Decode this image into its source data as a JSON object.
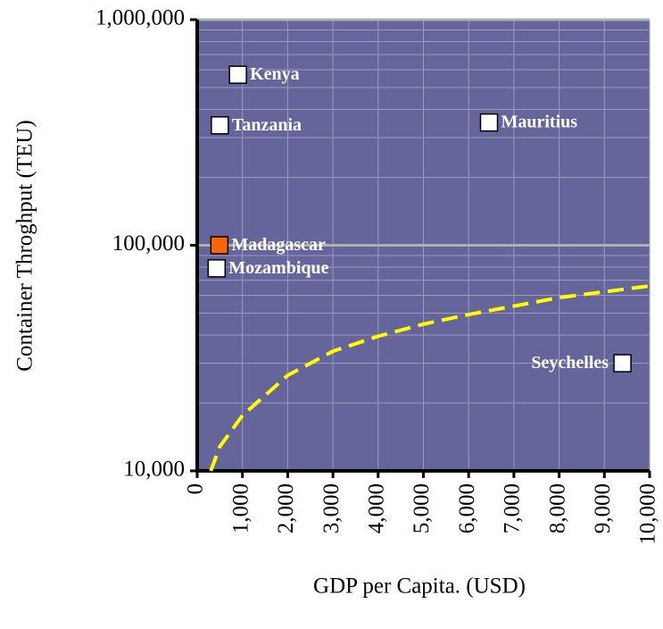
{
  "chart_data": {
    "type": "scatter",
    "xlabel": "GDP per Capita. (USD)",
    "ylabel": "Container Throghput (TEU)",
    "xlim": [
      0,
      10000
    ],
    "xticks": [
      0,
      {
        "value": 1000,
        "label": "1,000"
      },
      {
        "value": 2000,
        "label": "2,000"
      },
      {
        "value": 3000,
        "label": "3,000"
      },
      {
        "value": 4000,
        "label": "4,000"
      },
      {
        "value": 5000,
        "label": "5,000"
      },
      {
        "value": 6000,
        "label": "6,000"
      },
      {
        "value": 7000,
        "label": "7,000"
      },
      {
        "value": 8000,
        "label": "8,000"
      },
      {
        "value": 9000,
        "label": "9,000"
      },
      {
        "value": 10000,
        "label": "10,000"
      }
    ],
    "ylim": [
      10000,
      1000000
    ],
    "yscale": "log",
    "yticks": [
      {
        "value": 10000,
        "label": "10,000"
      },
      {
        "value": 100000,
        "label": "100,000"
      },
      {
        "value": 1000000,
        "label": "1,000,000"
      }
    ],
    "y_minor_ticks": [
      20000,
      30000,
      40000,
      50000,
      60000,
      70000,
      80000,
      90000,
      200000,
      300000,
      400000,
      500000,
      600000,
      700000,
      800000,
      900000
    ],
    "grid": true,
    "background": "#65659c",
    "points": [
      {
        "label": "Kenya",
        "x": 900,
        "y": 570000,
        "color": "#ffffff"
      },
      {
        "label": "Tanzania",
        "x": 500,
        "y": 340000,
        "color": "#ffffff"
      },
      {
        "label": "Mauritius",
        "x": 6450,
        "y": 350000,
        "color": "#ffffff"
      },
      {
        "label": "Madagascar",
        "x": 490,
        "y": 100000,
        "color": "#ff6600"
      },
      {
        "label": "Mozambique",
        "x": 430,
        "y": 79000,
        "color": "#ffffff"
      },
      {
        "label": "Seychelles",
        "x": 9400,
        "y": 30000,
        "color": "#ffffff"
      }
    ],
    "trendline": {
      "x": [
        300,
        500,
        1000,
        2000,
        3000,
        4000,
        5000,
        6000,
        8000,
        10000
      ],
      "values": [
        10000,
        12800,
        17600,
        26500,
        33900,
        39500,
        44700,
        49300,
        58600,
        66000
      ],
      "color": "#ffff00",
      "dashed": true
    }
  }
}
